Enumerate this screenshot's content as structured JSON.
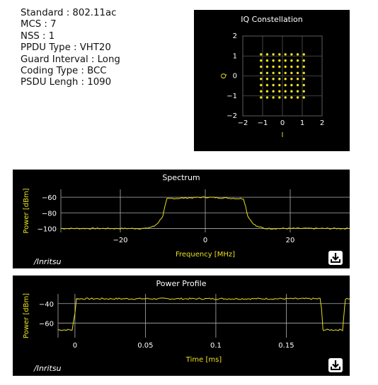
{
  "params": [
    {
      "label": "Standard",
      "value": "802.11ac"
    },
    {
      "label": "MCS",
      "value": "7"
    },
    {
      "label": "NSS",
      "value": "1"
    },
    {
      "label": "PPDU Type",
      "value": "VHT20"
    },
    {
      "label": "Guard Interval",
      "value": "Long"
    },
    {
      "label": "Coding Type",
      "value": "BCC"
    },
    {
      "label": "PSDU Lengh",
      "value": "1090"
    }
  ],
  "brand": "/Inritsu",
  "colors": {
    "trace": "#e8e020",
    "grid": "#b0b0b0",
    "background": "#000000",
    "text": "#ffffff"
  },
  "icons": {
    "download": "download-icon"
  },
  "chart_data": [
    {
      "type": "scatter",
      "title": "IQ Constellation",
      "xlabel": "I",
      "ylabel": "Q",
      "xlim": [
        -2,
        2
      ],
      "ylim": [
        -2,
        2
      ],
      "xticks": [
        "−2",
        "−1",
        "0",
        "1",
        "2"
      ],
      "yticks": [
        "2",
        "1",
        "0",
        "−1",
        "−2"
      ],
      "tick_values": [
        -2,
        -1,
        0,
        1,
        2
      ],
      "points_description_values": {
        "grid_levels": [
          -1.08,
          -0.77,
          -0.46,
          -0.15,
          0.15,
          0.46,
          0.77,
          1.08
        ]
      },
      "grid": true
    },
    {
      "type": "line",
      "title": "Spectrum",
      "xlabel": "Frequency [MHz]",
      "ylabel": "Power [dBm]",
      "xlim": [
        -34,
        34
      ],
      "ylim": [
        -105,
        -50
      ],
      "xticks": [
        {
          "v": -20,
          "t": "−20"
        },
        {
          "v": 0,
          "t": "0"
        },
        {
          "v": 20,
          "t": "20"
        }
      ],
      "yticks": [
        {
          "v": -60,
          "t": "−60"
        },
        {
          "v": -80,
          "t": "−80"
        },
        {
          "v": -100,
          "t": "−100"
        }
      ],
      "series": [
        {
          "x": [
            -34,
            -14,
            -12,
            -11,
            -10,
            -9.5,
            -9,
            0,
            9,
            9.5,
            10,
            11,
            12,
            14,
            34
          ],
          "y": [
            -100,
            -100,
            -97,
            -92,
            -84,
            -72,
            -62,
            -60,
            -62,
            -72,
            -84,
            -92,
            -97,
            -100,
            -100
          ]
        }
      ],
      "grid": true
    },
    {
      "type": "line",
      "title": "Power Profile",
      "xlabel": "Time [ms]",
      "ylabel": "Power [dBm]",
      "xlim": [
        -0.012,
        0.195
      ],
      "ylim": [
        -75,
        -30
      ],
      "xticks": [
        {
          "v": 0,
          "t": "0"
        },
        {
          "v": 0.05,
          "t": "0.05"
        },
        {
          "v": 0.1,
          "t": "0.1"
        },
        {
          "v": 0.15,
          "t": "0.15"
        }
      ],
      "yticks": [
        {
          "v": -40,
          "t": "−40"
        },
        {
          "v": -60,
          "t": "−60"
        }
      ],
      "series": [
        {
          "x": [
            -0.012,
            -0.002,
            0.0,
            0.001,
            0.002,
            0.174,
            0.175,
            0.176,
            0.177,
            0.19,
            0.191,
            0.192,
            0.195
          ],
          "y": [
            -67,
            -67,
            -50,
            -35,
            -35,
            -35,
            -45,
            -67,
            -67,
            -67,
            -50,
            -35,
            -35
          ]
        }
      ],
      "grid": true
    }
  ]
}
